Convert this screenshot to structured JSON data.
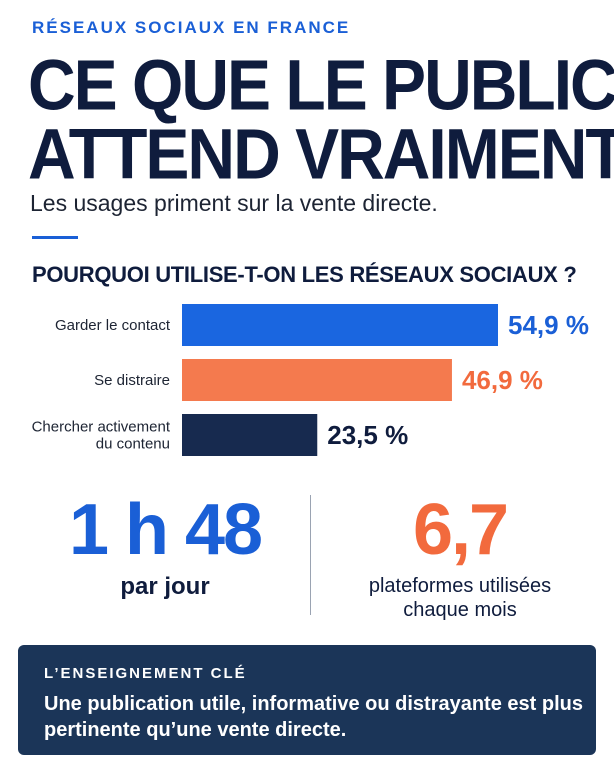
{
  "kicker": "RÉSEAUX SOCIAUX EN FRANCE",
  "headline": {
    "line1": "CE QUE LE PUBLIC",
    "line2": "ATTEND VRAIMENT"
  },
  "subtitle": "Les usages priment sur la vente directe.",
  "chart_data": {
    "type": "bar",
    "title": "POURQUOI UTILISE-T-ON LES RÉSEAUX SOCIAUX ?",
    "categories": [
      [
        "Garder le contact"
      ],
      [
        "Se distraire"
      ],
      [
        "Chercher activement",
        "du contenu"
      ]
    ],
    "values": [
      54.9,
      46.9,
      23.5
    ],
    "value_labels": [
      "54,9 %",
      "46,9 %",
      "23,5 %"
    ],
    "colors": [
      "#1a66e0",
      "#f47a4e",
      "#172a4f"
    ],
    "label_colors": [
      "#1a5fd6",
      "#f26a3d",
      "#0f1c3d"
    ],
    "orientation": "horizontal",
    "xlim": [
      0,
      54.9
    ],
    "grid": false,
    "legend": false
  },
  "stats": {
    "left": {
      "value": "1 h 48",
      "label": "par jour"
    },
    "right": {
      "value": "6,7",
      "label_line1": "plateformes utilisées",
      "label_line2": "chaque mois"
    }
  },
  "takeaway": {
    "label": "L’ENSEIGNEMENT CLÉ",
    "text": "Une publication utile, informative ou distrayante est plus pertinente qu’une vente directe."
  }
}
